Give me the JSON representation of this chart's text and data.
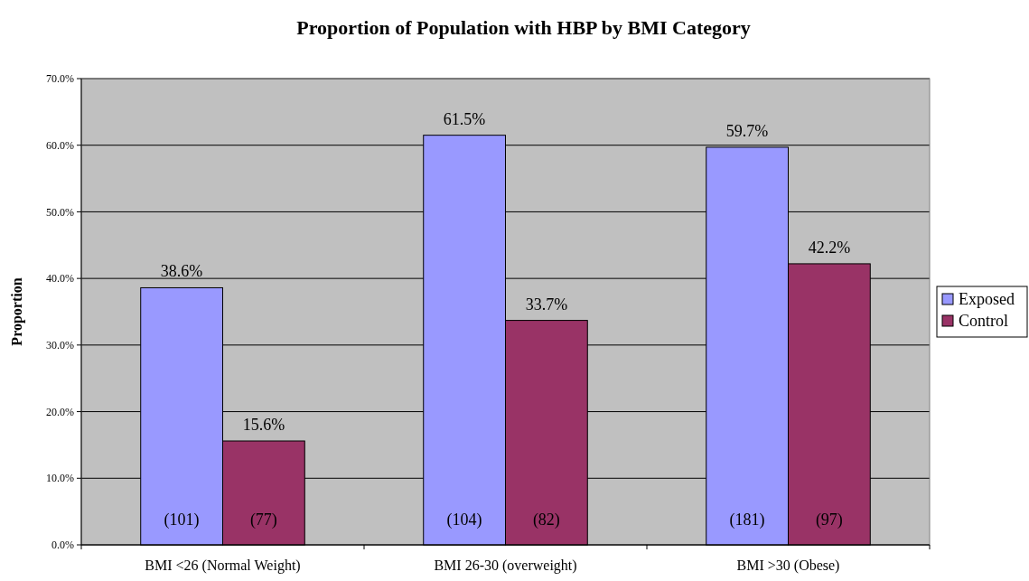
{
  "chart_data": {
    "type": "bar",
    "title": "Proportion of Population with HBP by BMI Category",
    "ylabel": "Proportion",
    "categories": [
      "BMI <26 (Normal Weight)",
      "BMI 26-30 (overweight)",
      "BMI >30 (Obese)"
    ],
    "series": [
      {
        "name": "Exposed",
        "color": "#9999ff",
        "values": [
          38.6,
          61.5,
          59.7
        ],
        "value_labels": [
          "38.6%",
          "61.5%",
          "59.7%"
        ]
      },
      {
        "name": "Control",
        "color": "#993366",
        "values": [
          15.6,
          33.7,
          42.2
        ],
        "value_labels": [
          "15.6%",
          "33.7%",
          "42.2%"
        ]
      }
    ],
    "ylim": [
      0,
      70
    ],
    "yticks": [
      {
        "value": 0,
        "label": "0.0%"
      },
      {
        "value": 10,
        "label": "10.0%"
      },
      {
        "value": 20,
        "label": "20.0%"
      },
      {
        "value": 30,
        "label": "30.0%"
      },
      {
        "value": 40,
        "label": "40.0%"
      },
      {
        "value": 50,
        "label": "50.0%"
      },
      {
        "value": 60,
        "label": "60.0%"
      },
      {
        "value": 70,
        "label": "70.0%"
      }
    ],
    "grid": "y",
    "legend": "right",
    "annotations": [
      {
        "text": "(101)",
        "x": "BMI <26 (Normal Weight)"
      },
      {
        "text": "(77)",
        "x": "BMI <26 (Normal Weight)"
      },
      {
        "text": "(104)",
        "x": "BMI 26-30 (overweight)"
      },
      {
        "text": "(82)",
        "x": "BMI 26-30 (overweight)"
      },
      {
        "text": "(181)",
        "x": "BMI >30 (Obese)"
      },
      {
        "text": "(97)",
        "x": "BMI >30 (Obese)"
      }
    ]
  }
}
